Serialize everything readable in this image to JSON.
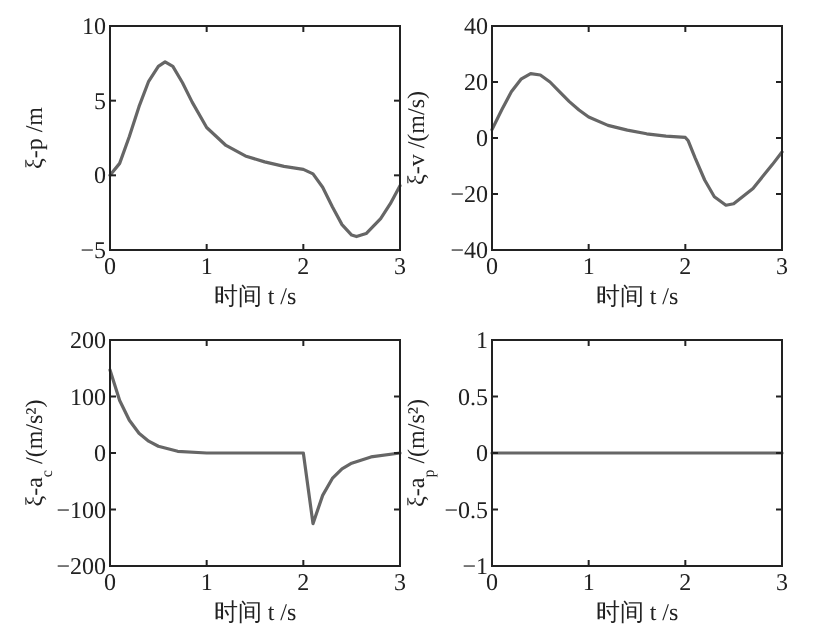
{
  "chart_data": [
    {
      "type": "line",
      "xlabel": "时间 t /s",
      "ylabel": "ξ-p /m",
      "xlim": [
        0,
        3
      ],
      "ylim": [
        -5,
        10
      ],
      "xticks": [
        0,
        1,
        2,
        3
      ],
      "yticks": [
        {
          "value": -5,
          "label": "−5"
        },
        0,
        5,
        10
      ],
      "series": [
        {
          "color": "#666666",
          "x": [
            0,
            0.1,
            0.2,
            0.3,
            0.4,
            0.5,
            0.57,
            0.65,
            0.75,
            0.85,
            1.0,
            1.2,
            1.4,
            1.6,
            1.8,
            2.0,
            2.1,
            2.2,
            2.3,
            2.4,
            2.5,
            2.55,
            2.65,
            2.8,
            2.9,
            3.0
          ],
          "values": [
            0,
            0.8,
            2.6,
            4.6,
            6.3,
            7.3,
            7.6,
            7.3,
            6.2,
            4.9,
            3.2,
            2.0,
            1.3,
            0.9,
            0.6,
            0.4,
            0.1,
            -0.8,
            -2.1,
            -3.3,
            -4.0,
            -4.1,
            -3.9,
            -2.9,
            -1.9,
            -0.7
          ]
        }
      ]
    },
    {
      "type": "line",
      "xlabel": "时间 t /s",
      "ylabel": "ξ-v /(m/s)",
      "xlim": [
        0,
        3
      ],
      "ylim": [
        -40,
        40
      ],
      "xticks": [
        0,
        1,
        2,
        3
      ],
      "yticks": [
        {
          "value": -40,
          "label": "−40"
        },
        {
          "value": -20,
          "label": "−20"
        },
        0,
        20,
        40
      ],
      "series": [
        {
          "color": "#666666",
          "x": [
            0,
            0.1,
            0.2,
            0.3,
            0.4,
            0.5,
            0.6,
            0.7,
            0.8,
            0.9,
            1.0,
            1.2,
            1.4,
            1.6,
            1.8,
            2.0,
            2.03,
            2.1,
            2.2,
            2.3,
            2.42,
            2.5,
            2.7,
            2.9,
            3.0
          ],
          "values": [
            3,
            10,
            16.5,
            21,
            23,
            22.5,
            20,
            16.5,
            13,
            10,
            7.5,
            4.5,
            2.8,
            1.5,
            0.7,
            0.2,
            -1,
            -7,
            -15,
            -21,
            -24,
            -23.5,
            -18,
            -9.5,
            -5
          ]
        }
      ]
    },
    {
      "type": "line",
      "xlabel": "时间 t /s",
      "ylabel": "ξ-a$_{c}$ /(m/s²)",
      "xlim": [
        0,
        3
      ],
      "ylim": [
        -200,
        200
      ],
      "xticks": [
        0,
        1,
        2,
        3
      ],
      "yticks": [
        {
          "value": -200,
          "label": "−200"
        },
        {
          "value": -100,
          "label": "−100"
        },
        0,
        100,
        200
      ],
      "series": [
        {
          "color": "#666666",
          "x": [
            0,
            0.1,
            0.2,
            0.3,
            0.4,
            0.5,
            0.7,
            1.0,
            1.5,
            2.0,
            2.1,
            2.2,
            2.3,
            2.4,
            2.5,
            2.7,
            3.0
          ],
          "values": [
            147,
            93,
            58,
            35,
            21,
            12,
            3,
            0,
            0,
            0,
            -125,
            -75,
            -45,
            -28,
            -18,
            -7,
            0
          ]
        }
      ]
    },
    {
      "type": "line",
      "xlabel": "时间 t /s",
      "ylabel": "ξ-a$_{p}$ /(m/s²)",
      "xlim": [
        0,
        3
      ],
      "ylim": [
        -1,
        1
      ],
      "xticks": [
        0,
        1,
        2,
        3
      ],
      "yticks": [
        {
          "value": -1,
          "label": "−1"
        },
        {
          "value": -0.5,
          "label": "−0.5"
        },
        0,
        0.5,
        1
      ],
      "series": [
        {
          "color": "#666666",
          "x": [
            0,
            3
          ],
          "values": [
            0,
            0
          ]
        }
      ]
    }
  ]
}
